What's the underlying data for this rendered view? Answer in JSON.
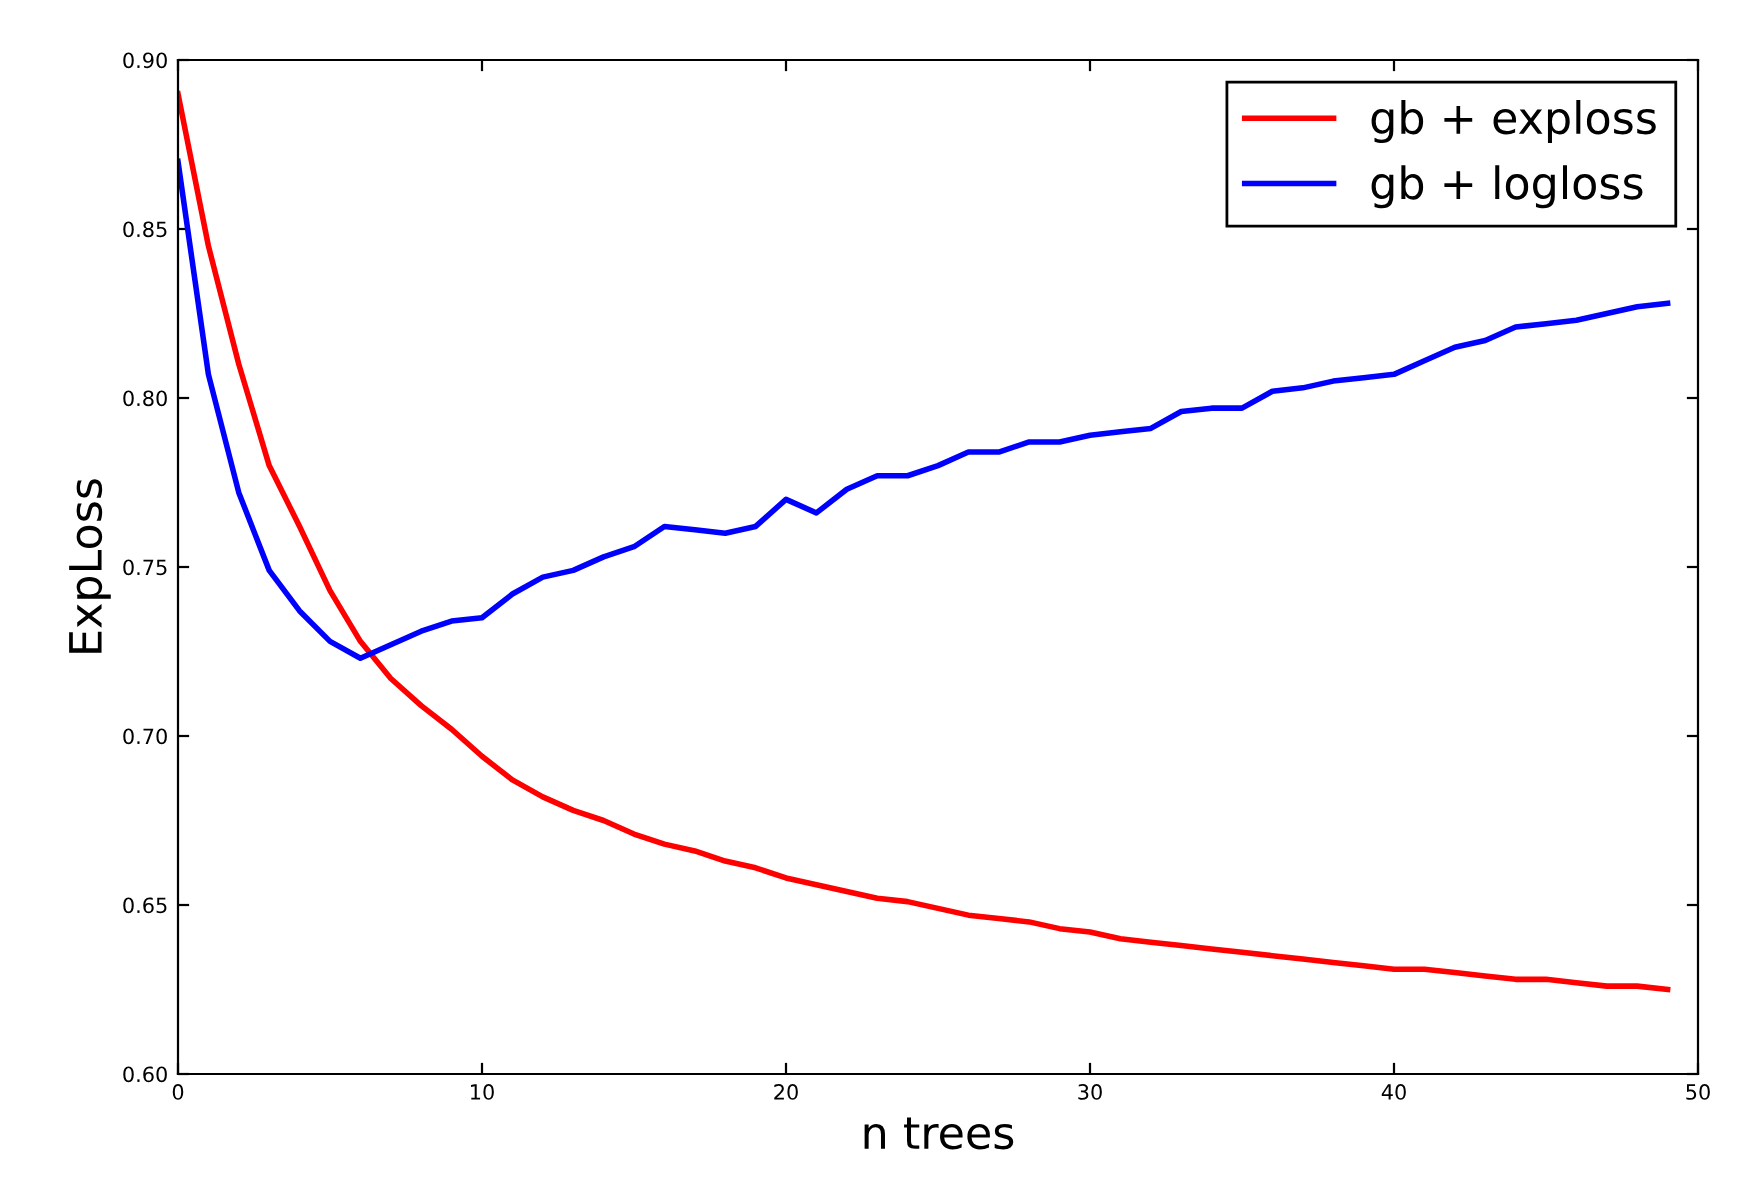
{
  "chart_data": {
    "type": "line",
    "xlabel": "n trees",
    "ylabel": "ExpLoss",
    "x": [
      0,
      1,
      2,
      3,
      4,
      5,
      6,
      7,
      8,
      9,
      10,
      11,
      12,
      13,
      14,
      15,
      16,
      17,
      18,
      19,
      20,
      21,
      22,
      23,
      24,
      25,
      26,
      27,
      28,
      29,
      30,
      31,
      32,
      33,
      34,
      35,
      36,
      37,
      38,
      39,
      40,
      41,
      42,
      43,
      44,
      45,
      46,
      47,
      48,
      49
    ],
    "series": [
      {
        "name": "gb + exploss",
        "color": "#ff0000",
        "values": [
          0.89,
          0.845,
          0.81,
          0.78,
          0.762,
          0.743,
          0.728,
          0.717,
          0.709,
          0.702,
          0.694,
          0.687,
          0.682,
          0.678,
          0.675,
          0.671,
          0.668,
          0.666,
          0.663,
          0.661,
          0.658,
          0.656,
          0.654,
          0.652,
          0.651,
          0.649,
          0.647,
          0.646,
          0.645,
          0.643,
          0.642,
          0.64,
          0.639,
          0.638,
          0.637,
          0.636,
          0.635,
          0.634,
          0.633,
          0.632,
          0.631,
          0.631,
          0.63,
          0.629,
          0.628,
          0.628,
          0.627,
          0.626,
          0.626,
          0.625
        ]
      },
      {
        "name": "gb + logloss",
        "color": "#0000ff",
        "values": [
          0.87,
          0.807,
          0.772,
          0.749,
          0.737,
          0.728,
          0.723,
          0.727,
          0.731,
          0.734,
          0.735,
          0.742,
          0.747,
          0.749,
          0.753,
          0.756,
          0.762,
          0.761,
          0.76,
          0.762,
          0.77,
          0.766,
          0.773,
          0.777,
          0.777,
          0.78,
          0.784,
          0.784,
          0.787,
          0.787,
          0.789,
          0.79,
          0.791,
          0.796,
          0.797,
          0.797,
          0.802,
          0.803,
          0.805,
          0.806,
          0.807,
          0.811,
          0.815,
          0.817,
          0.821,
          0.822,
          0.823,
          0.825,
          0.827,
          0.828
        ]
      }
    ],
    "xlim": [
      0,
      50
    ],
    "xticks": [
      0,
      10,
      20,
      30,
      40,
      50
    ],
    "ylim": [
      0.6,
      0.9
    ],
    "yticks": [
      {
        "value": 0.6,
        "label": "0.60"
      },
      {
        "value": 0.65,
        "label": "0.65"
      },
      {
        "value": 0.7,
        "label": "0.70"
      },
      {
        "value": 0.75,
        "label": "0.75"
      },
      {
        "value": 0.8,
        "label": "0.80"
      },
      {
        "value": 0.85,
        "label": "0.85"
      },
      {
        "value": 0.9,
        "label": "0.90"
      }
    ],
    "grid": false,
    "legend": "top right",
    "marker": "none",
    "line_style": "solid"
  }
}
